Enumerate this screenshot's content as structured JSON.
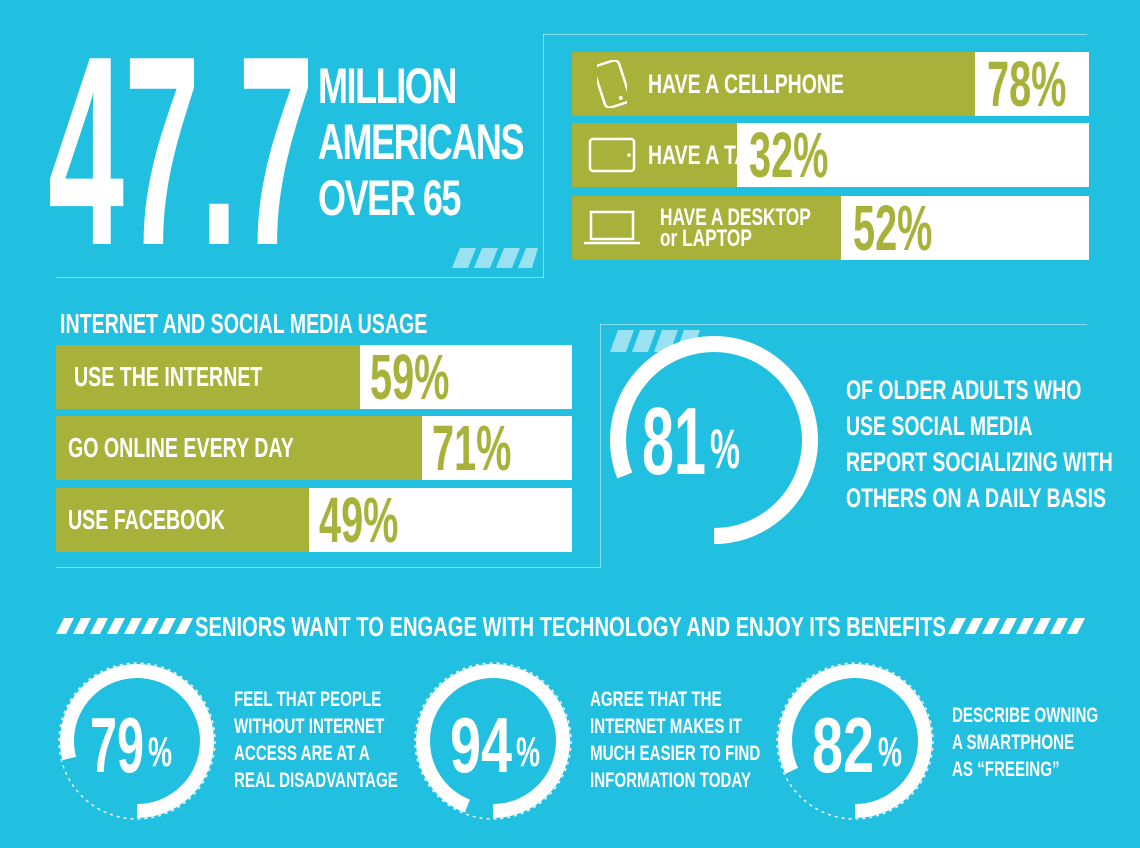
{
  "hero": {
    "number": "47.7",
    "lines": [
      "MILLION",
      "AMERICANS",
      "OVER 65"
    ]
  },
  "devices": [
    {
      "label": "HAVE A CELLPHONE",
      "value": 78,
      "display": "78%",
      "icon": "cellphone-icon"
    },
    {
      "label": "HAVE A TABLET",
      "value": 32,
      "display": "32%",
      "icon": "tablet-icon"
    },
    {
      "label_line1": "HAVE A DESKTOP",
      "label_line2": "or LAPTOP",
      "value": 52,
      "display": "52%",
      "icon": "laptop-icon"
    }
  ],
  "internet": {
    "title": "INTERNET AND SOCIAL MEDIA USAGE",
    "items": [
      {
        "label": "USE THE INTERNET",
        "value": 59,
        "display": "59%"
      },
      {
        "label": "GO ONLINE EVERY DAY",
        "value": 71,
        "display": "71%"
      },
      {
        "label": "USE FACEBOOK",
        "value": 49,
        "display": "49%"
      }
    ]
  },
  "social_stat": {
    "value": 81,
    "number": "81",
    "percent_sign": "%",
    "lines": [
      "OF OLDER ADULTS WHO",
      "USE SOCIAL MEDIA",
      "REPORT SOCIALIZING WITH",
      "OTHERS ON A DAILY BASIS"
    ]
  },
  "benefits": {
    "heading": "SENIORS WANT TO ENGAGE WITH TECHNOLOGY AND ENJOY ITS BENEFITS",
    "items": [
      {
        "value": 79,
        "number": "79",
        "percent_sign": "%",
        "lines": [
          "FEEL THAT PEOPLE",
          "WITHOUT INTERNET",
          "ACCESS ARE AT A",
          "REAL DISADVANTAGE"
        ]
      },
      {
        "value": 94,
        "number": "94",
        "percent_sign": "%",
        "lines": [
          "AGREE THAT THE",
          "INTERNET MAKES IT",
          "MUCH EASIER TO FIND",
          "INFORMATION TODAY"
        ]
      },
      {
        "value": 82,
        "number": "82",
        "percent_sign": "%",
        "lines": [
          "DESCRIBE OWNING",
          "A SMARTPHONE",
          "AS “FREEING”"
        ]
      }
    ]
  },
  "colors": {
    "background": "#21bfe0",
    "olive": "#a8b23a",
    "white": "#ffffff"
  },
  "chart_data": [
    {
      "type": "bar",
      "categories": [
        "HAVE A CELLPHONE",
        "HAVE A TABLET",
        "HAVE A DESKTOP or LAPTOP"
      ],
      "values": [
        78,
        32,
        52
      ],
      "ylim": [
        0,
        100
      ]
    },
    {
      "type": "bar",
      "title": "INTERNET AND SOCIAL MEDIA USAGE",
      "categories": [
        "USE THE INTERNET",
        "GO ONLINE EVERY DAY",
        "USE FACEBOOK"
      ],
      "values": [
        59,
        71,
        49
      ],
      "ylim": [
        0,
        100
      ]
    },
    {
      "type": "pie",
      "values": [
        81,
        79,
        94,
        82
      ]
    }
  ]
}
